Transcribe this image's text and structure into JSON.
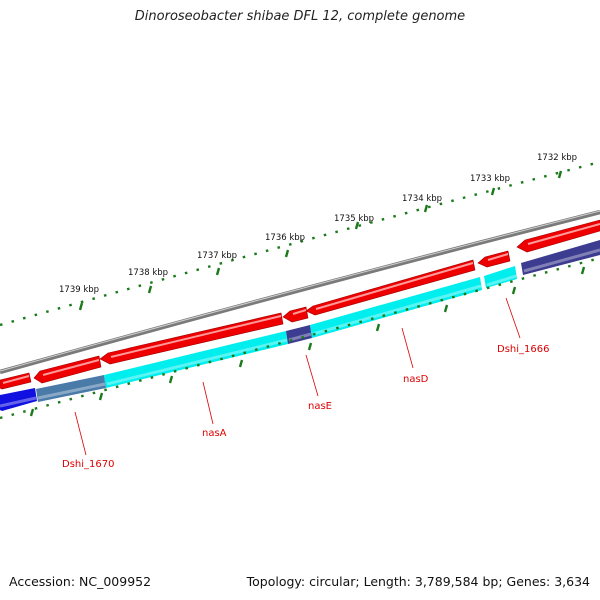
{
  "title": "Dinoroseobacter shibae DFL 12, complete genome",
  "footer": {
    "accession": "Accession: NC_009952",
    "summary": "Topology: circular; Length: 3,789,584 bp; Genes: 3,634"
  },
  "colors": {
    "backbone": "#7a7a7a",
    "cds_red": "#ee0000",
    "cyan": "#00eeee",
    "blue": "#1010e0",
    "steel": "#4a7aa8",
    "navy": "#3c3c90",
    "tick_green": "#1a7a1a",
    "label_red": "#dd0000"
  },
  "ruler": {
    "unit": "kbp",
    "labels": [
      {
        "kbp": 1732,
        "text": "1732 kbp"
      },
      {
        "kbp": 1733,
        "text": "1733 kbp"
      },
      {
        "kbp": 1734,
        "text": "1734 kbp"
      },
      {
        "kbp": 1735,
        "text": "1735 kbp"
      },
      {
        "kbp": 1736,
        "text": "1736 kbp"
      },
      {
        "kbp": 1737,
        "text": "1737 kbp"
      },
      {
        "kbp": 1738,
        "text": "1738 kbp"
      },
      {
        "kbp": 1739,
        "text": "1739 kbp"
      }
    ]
  },
  "gene_labels": [
    {
      "text": "Dshi_1670"
    },
    {
      "text": "nasA"
    },
    {
      "text": "nasE"
    },
    {
      "text": "nasD"
    },
    {
      "text": "Dshi_1666"
    }
  ]
}
